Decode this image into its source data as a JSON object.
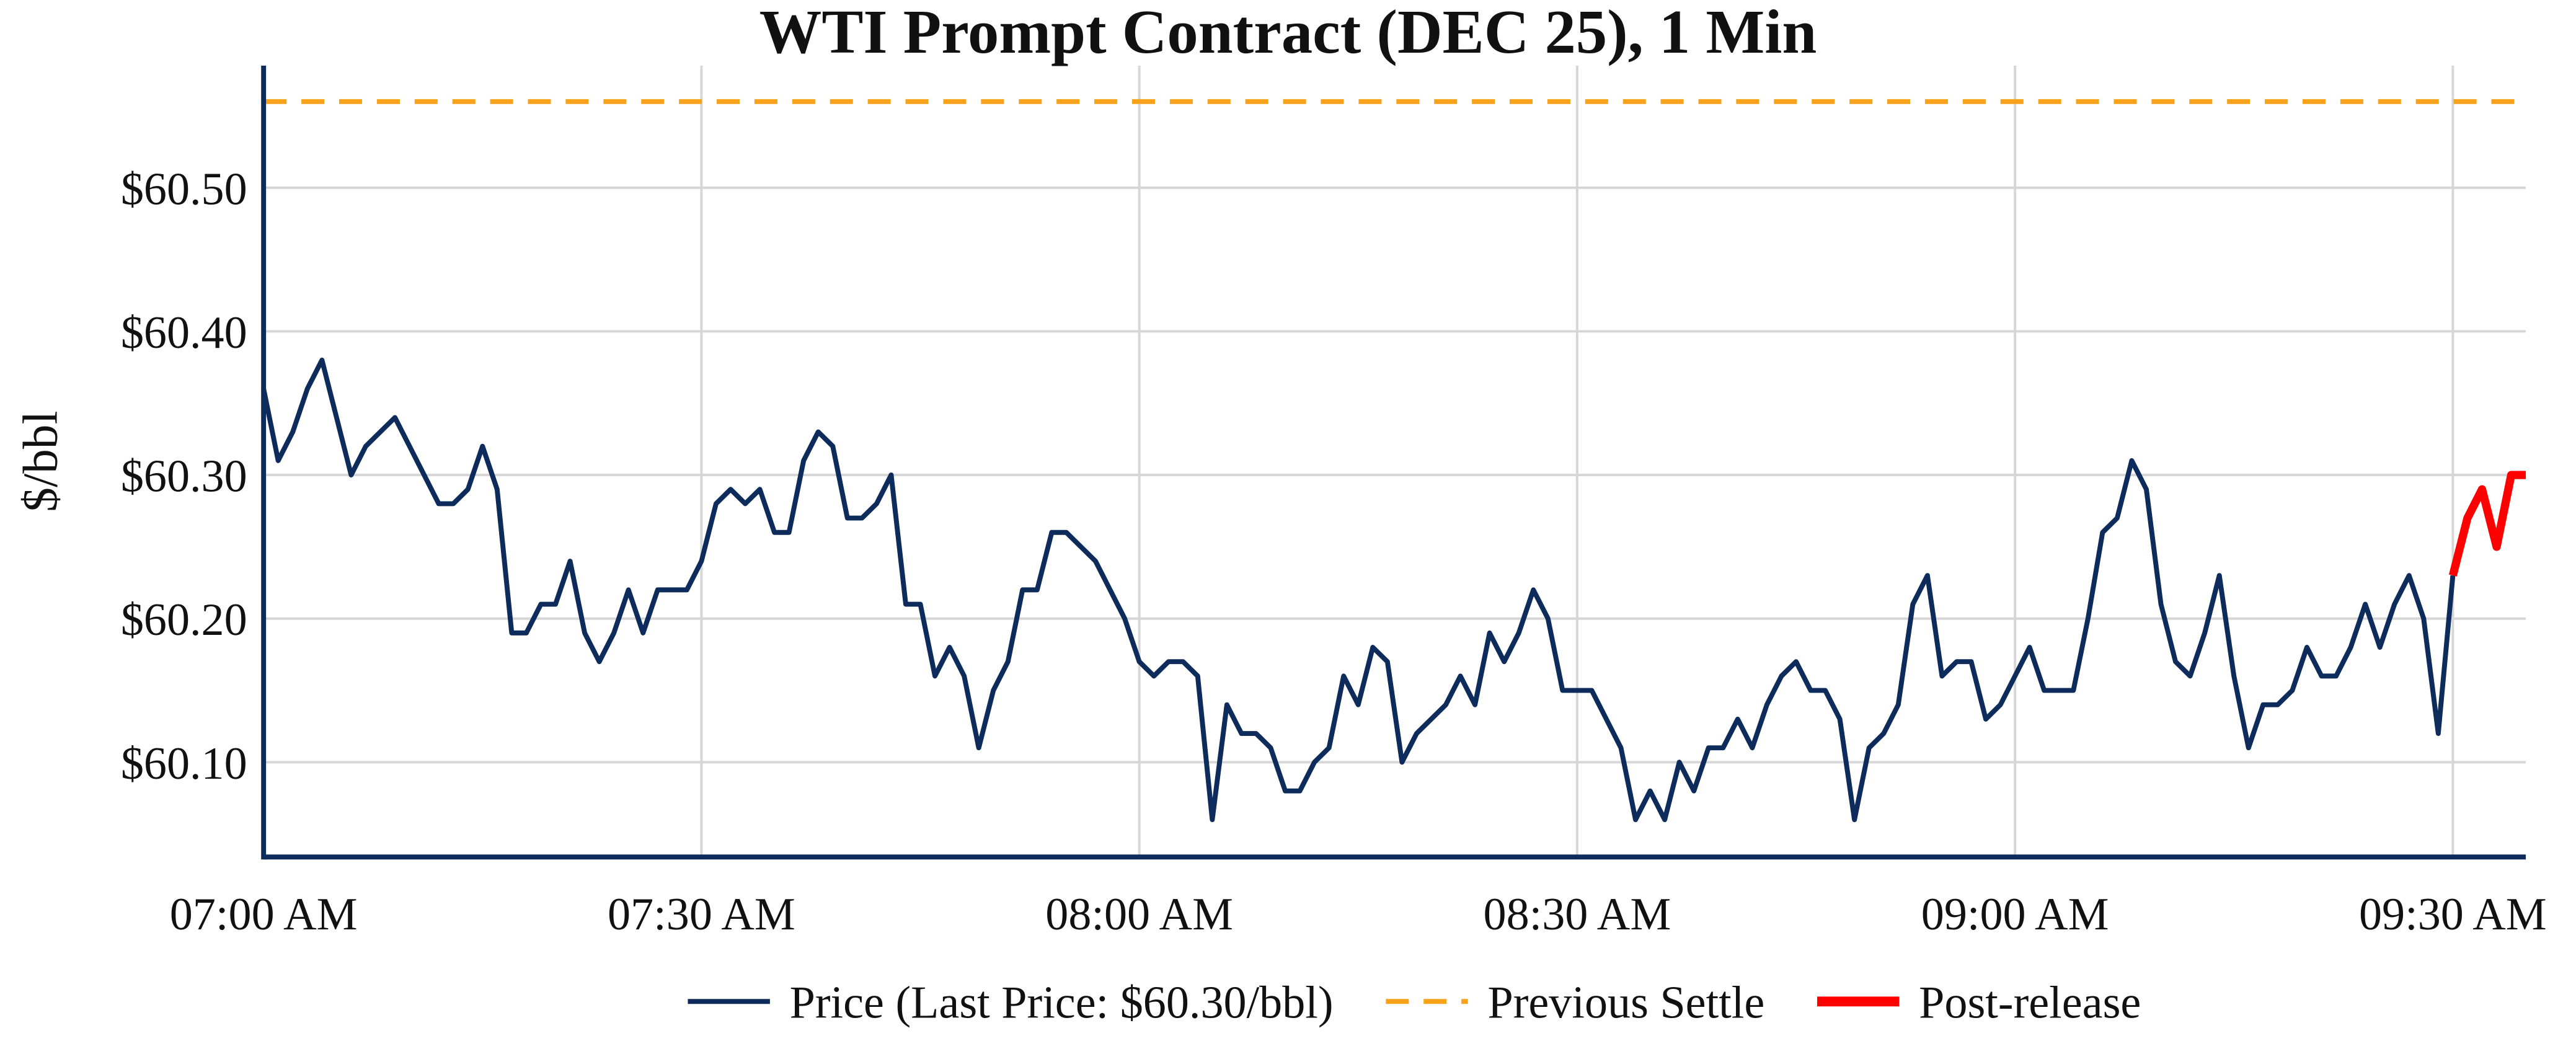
{
  "chart_data": {
    "type": "line",
    "title": "WTI Prompt Contract (DEC 25), 1 Min",
    "y_label": "$/bbl",
    "grid": true,
    "legend": "bottom",
    "xlim": [
      "07:00",
      "09:35"
    ],
    "xticks": [
      {
        "value": "07:00",
        "label": "07:00 AM"
      },
      {
        "value": "07:30",
        "label": "07:30 AM"
      },
      {
        "value": "08:00",
        "label": "08:00 AM"
      },
      {
        "value": "08:30",
        "label": "08:30 AM"
      },
      {
        "value": "09:00",
        "label": "09:00 AM"
      },
      {
        "value": "09:30",
        "label": "09:30 AM"
      }
    ],
    "ylim": [
      60.034,
      60.585
    ],
    "yticks": [
      {
        "value": 60.1,
        "label": "$60.10"
      },
      {
        "value": 60.2,
        "label": "$60.20"
      },
      {
        "value": 60.3,
        "label": "$60.30"
      },
      {
        "value": 60.4,
        "label": "$60.40"
      },
      {
        "value": 60.5,
        "label": "$60.50"
      }
    ],
    "series": [
      {
        "name": "Price (Last Price: $60.30/bbl)",
        "color": "#0d2b5b",
        "width": 3,
        "x": [
          "07:00",
          "07:01",
          "07:02",
          "07:03",
          "07:04",
          "07:05",
          "07:06",
          "07:07",
          "07:08",
          "07:09",
          "07:10",
          "07:11",
          "07:12",
          "07:13",
          "07:14",
          "07:15",
          "07:16",
          "07:17",
          "07:18",
          "07:19",
          "07:20",
          "07:21",
          "07:22",
          "07:23",
          "07:24",
          "07:25",
          "07:26",
          "07:27",
          "07:28",
          "07:29",
          "07:30",
          "07:31",
          "07:32",
          "07:33",
          "07:34",
          "07:35",
          "07:36",
          "07:37",
          "07:38",
          "07:39",
          "07:40",
          "07:41",
          "07:42",
          "07:43",
          "07:44",
          "07:45",
          "07:46",
          "07:47",
          "07:48",
          "07:49",
          "07:50",
          "07:51",
          "07:52",
          "07:53",
          "07:54",
          "07:55",
          "07:56",
          "07:57",
          "07:58",
          "07:59",
          "08:00",
          "08:01",
          "08:02",
          "08:03",
          "08:04",
          "08:05",
          "08:06",
          "08:07",
          "08:08",
          "08:09",
          "08:10",
          "08:11",
          "08:12",
          "08:13",
          "08:14",
          "08:15",
          "08:16",
          "08:17",
          "08:18",
          "08:19",
          "08:20",
          "08:21",
          "08:22",
          "08:23",
          "08:24",
          "08:25",
          "08:26",
          "08:27",
          "08:28",
          "08:29",
          "08:30",
          "08:31",
          "08:32",
          "08:33",
          "08:34",
          "08:35",
          "08:36",
          "08:37",
          "08:38",
          "08:39",
          "08:40",
          "08:41",
          "08:42",
          "08:43",
          "08:44",
          "08:45",
          "08:46",
          "08:47",
          "08:48",
          "08:49",
          "08:50",
          "08:51",
          "08:52",
          "08:53",
          "08:54",
          "08:55",
          "08:56",
          "08:57",
          "08:58",
          "08:59",
          "09:00",
          "09:01",
          "09:02",
          "09:03",
          "09:04",
          "09:05",
          "09:06",
          "09:07",
          "09:08",
          "09:09",
          "09:10",
          "09:11",
          "09:12",
          "09:13",
          "09:14",
          "09:15",
          "09:16",
          "09:17",
          "09:18",
          "09:19",
          "09:20",
          "09:21",
          "09:22",
          "09:23",
          "09:24",
          "09:25",
          "09:26",
          "09:27",
          "09:28",
          "09:29",
          "09:30"
        ],
        "values": [
          60.36,
          60.31,
          60.33,
          60.36,
          60.38,
          60.34,
          60.3,
          60.32,
          60.33,
          60.34,
          60.32,
          60.3,
          60.28,
          60.28,
          60.29,
          60.32,
          60.29,
          60.19,
          60.19,
          60.21,
          60.21,
          60.24,
          60.19,
          60.17,
          60.19,
          60.22,
          60.19,
          60.22,
          60.22,
          60.22,
          60.24,
          60.28,
          60.29,
          60.28,
          60.29,
          60.26,
          60.26,
          60.31,
          60.33,
          60.32,
          60.27,
          60.27,
          60.28,
          60.3,
          60.21,
          60.21,
          60.16,
          60.18,
          60.16,
          60.11,
          60.15,
          60.17,
          60.22,
          60.22,
          60.26,
          60.26,
          60.25,
          60.24,
          60.22,
          60.2,
          60.17,
          60.16,
          60.17,
          60.17,
          60.16,
          60.06,
          60.14,
          60.12,
          60.12,
          60.11,
          60.08,
          60.08,
          60.1,
          60.11,
          60.16,
          60.14,
          60.18,
          60.17,
          60.1,
          60.12,
          60.13,
          60.14,
          60.16,
          60.14,
          60.19,
          60.17,
          60.19,
          60.22,
          60.2,
          60.15,
          60.15,
          60.15,
          60.13,
          60.11,
          60.06,
          60.08,
          60.06,
          60.1,
          60.08,
          60.11,
          60.11,
          60.13,
          60.11,
          60.14,
          60.16,
          60.17,
          60.15,
          60.15,
          60.13,
          60.06,
          60.11,
          60.12,
          60.14,
          60.21,
          60.23,
          60.16,
          60.17,
          60.17,
          60.13,
          60.14,
          60.16,
          60.18,
          60.15,
          60.15,
          60.15,
          60.2,
          60.26,
          60.27,
          60.31,
          60.29,
          60.21,
          60.17,
          60.16,
          60.19,
          60.23,
          60.16,
          60.11,
          60.14,
          60.14,
          60.15,
          60.18,
          60.16,
          60.16,
          60.18,
          60.21,
          60.18,
          60.21,
          60.23,
          60.2,
          60.12,
          60.23
        ]
      },
      {
        "name": "Post-release",
        "color": "#ff0000",
        "width": 5,
        "x": [
          "09:30",
          "09:31",
          "09:32",
          "09:33",
          "09:34",
          "09:35"
        ],
        "values": [
          60.23,
          60.27,
          60.29,
          60.25,
          60.3,
          60.3
        ]
      }
    ],
    "reference_lines": [
      {
        "name": "Previous Settle",
        "value": 60.56,
        "color": "#f7a21b",
        "dashed": true
      }
    ]
  }
}
